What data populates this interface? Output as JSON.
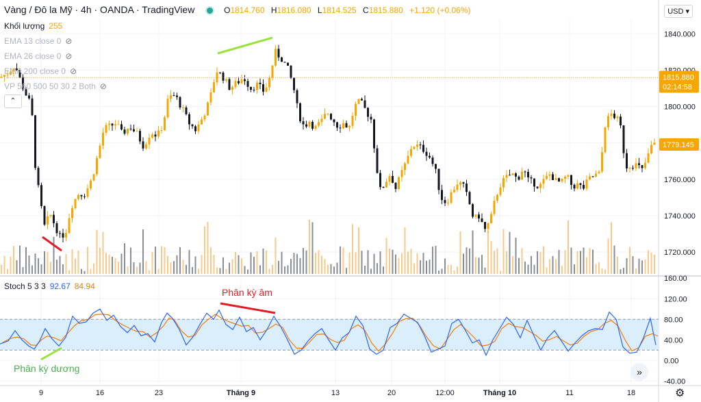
{
  "header": {
    "symbol": "Vàng / Đô la Mỹ · 4h · OANDA · TradingView",
    "ohlc": {
      "o_label": "O",
      "o": "1814.760",
      "h_label": "H",
      "h": "1816.080",
      "l_label": "L",
      "l": "1814.525",
      "c_label": "C",
      "c": "1815.880",
      "change": "+1.120 (+0.06%)"
    },
    "currency": "USD ▾"
  },
  "volume": {
    "label": "Khối lượng",
    "value": "255"
  },
  "indicators": [
    "EMA 13 close 0",
    "EMA 26 close 0",
    "EMA 200 close 0",
    "VP 560 500 50 30 2 Both"
  ],
  "stoch": {
    "label": "Stoch 5 3 3",
    "k": "92.67",
    "d": "84.94"
  },
  "annotations": {
    "negative_divergence": "Phân kỳ âm",
    "positive_divergence": "Phân kỳ dương"
  },
  "colors": {
    "up": "#f7a600",
    "down": "#131722",
    "vol_up": "#f9c98a",
    "vol_down": "#8a8d96",
    "stoch_k": "#2962ff",
    "stoch_d": "#f57c00",
    "band_fill": "#dbeefb",
    "green_line": "#9be13b",
    "red_line": "#e31b23"
  },
  "chart_data": {
    "type": "candlestick",
    "price_axis": {
      "ticks": [
        1720,
        1740,
        1760,
        1780,
        1800,
        1820,
        1840
      ],
      "ylim": [
        1708,
        1848
      ]
    },
    "volume_axis": {
      "tick": "160.00"
    },
    "stoch_axis": {
      "ticks": [
        -40,
        0,
        40,
        80,
        120
      ],
      "ylim": [
        -45,
        135
      ],
      "bands": [
        20,
        80
      ]
    },
    "last_price": {
      "value": "1815.880",
      "countdown": "02:14:58"
    },
    "second_price_label": "1779.145",
    "x_ticks": [
      "9",
      "16",
      "23",
      "Tháng 9",
      "13",
      "20",
      "12:00",
      "Tháng 10",
      "11",
      "18"
    ],
    "close_path": [
      [
        0,
        1816
      ],
      [
        10,
        1818
      ],
      [
        22,
        1823
      ],
      [
        34,
        1810
      ],
      [
        46,
        1800
      ],
      [
        52,
        1765
      ],
      [
        60,
        1745
      ],
      [
        66,
        1732
      ],
      [
        72,
        1742
      ],
      [
        80,
        1735
      ],
      [
        88,
        1728
      ],
      [
        96,
        1731
      ],
      [
        104,
        1745
      ],
      [
        114,
        1752
      ],
      [
        124,
        1752
      ],
      [
        134,
        1760
      ],
      [
        142,
        1772
      ],
      [
        152,
        1788
      ],
      [
        160,
        1789
      ],
      [
        170,
        1791
      ],
      [
        178,
        1785
      ],
      [
        190,
        1789
      ],
      [
        200,
        1785
      ],
      [
        210,
        1778
      ],
      [
        220,
        1786
      ],
      [
        230,
        1784
      ],
      [
        238,
        1790
      ],
      [
        246,
        1805
      ],
      [
        256,
        1806
      ],
      [
        266,
        1799
      ],
      [
        276,
        1791
      ],
      [
        286,
        1787
      ],
      [
        296,
        1794
      ],
      [
        306,
        1803
      ],
      [
        316,
        1820
      ],
      [
        326,
        1816
      ],
      [
        336,
        1810
      ],
      [
        346,
        1813
      ],
      [
        356,
        1816
      ],
      [
        366,
        1810
      ],
      [
        376,
        1812
      ],
      [
        386,
        1808
      ],
      [
        394,
        1816
      ],
      [
        402,
        1830
      ],
      [
        412,
        1826
      ],
      [
        420,
        1821
      ],
      [
        428,
        1812
      ],
      [
        436,
        1796
      ],
      [
        444,
        1789
      ],
      [
        452,
        1792
      ],
      [
        460,
        1788
      ],
      [
        470,
        1792
      ],
      [
        478,
        1797
      ],
      [
        486,
        1793
      ],
      [
        494,
        1789
      ],
      [
        502,
        1791
      ],
      [
        510,
        1788
      ],
      [
        518,
        1800
      ],
      [
        526,
        1803
      ],
      [
        534,
        1798
      ],
      [
        542,
        1793
      ],
      [
        550,
        1767
      ],
      [
        556,
        1753
      ],
      [
        562,
        1758
      ],
      [
        570,
        1763
      ],
      [
        578,
        1755
      ],
      [
        586,
        1763
      ],
      [
        594,
        1770
      ],
      [
        602,
        1779
      ],
      [
        612,
        1778
      ],
      [
        620,
        1776
      ],
      [
        628,
        1772
      ],
      [
        636,
        1765
      ],
      [
        644,
        1750
      ],
      [
        652,
        1747
      ],
      [
        660,
        1753
      ],
      [
        668,
        1758
      ],
      [
        676,
        1757
      ],
      [
        684,
        1749
      ],
      [
        692,
        1738
      ],
      [
        700,
        1740
      ],
      [
        708,
        1732
      ],
      [
        716,
        1737
      ],
      [
        724,
        1750
      ],
      [
        732,
        1758
      ],
      [
        740,
        1761
      ],
      [
        748,
        1763
      ],
      [
        756,
        1760
      ],
      [
        764,
        1766
      ],
      [
        772,
        1759
      ],
      [
        780,
        1758
      ],
      [
        788,
        1756
      ],
      [
        796,
        1760
      ],
      [
        804,
        1763
      ],
      [
        812,
        1759
      ],
      [
        820,
        1758
      ],
      [
        828,
        1762
      ],
      [
        836,
        1756
      ],
      [
        844,
        1757
      ],
      [
        852,
        1755
      ],
      [
        860,
        1760
      ],
      [
        868,
        1762
      ],
      [
        876,
        1763
      ],
      [
        884,
        1790
      ],
      [
        892,
        1796
      ],
      [
        900,
        1794
      ],
      [
        906,
        1790
      ],
      [
        914,
        1767
      ],
      [
        922,
        1768
      ],
      [
        930,
        1768
      ],
      [
        938,
        1765
      ],
      [
        946,
        1772
      ],
      [
        952,
        1779
      ],
      [
        958,
        1779
      ]
    ],
    "stoch_path": [
      [
        0,
        32
      ],
      [
        12,
        38
      ],
      [
        22,
        58
      ],
      [
        32,
        40
      ],
      [
        42,
        28
      ],
      [
        50,
        22
      ],
      [
        58,
        38
      ],
      [
        66,
        62
      ],
      [
        76,
        42
      ],
      [
        86,
        28
      ],
      [
        96,
        45
      ],
      [
        106,
        86
      ],
      [
        116,
        72
      ],
      [
        126,
        75
      ],
      [
        136,
        92
      ],
      [
        146,
        100
      ],
      [
        156,
        78
      ],
      [
        166,
        88
      ],
      [
        176,
        66
      ],
      [
        186,
        54
      ],
      [
        196,
        68
      ],
      [
        206,
        48
      ],
      [
        216,
        52
      ],
      [
        226,
        36
      ],
      [
        236,
        74
      ],
      [
        244,
        92
      ],
      [
        252,
        82
      ],
      [
        262,
        60
      ],
      [
        272,
        30
      ],
      [
        282,
        46
      ],
      [
        292,
        70
      ],
      [
        302,
        92
      ],
      [
        312,
        80
      ],
      [
        320,
        98
      ],
      [
        330,
        70
      ],
      [
        340,
        60
      ],
      [
        350,
        84
      ],
      [
        360,
        56
      ],
      [
        370,
        64
      ],
      [
        380,
        40
      ],
      [
        390,
        60
      ],
      [
        400,
        86
      ],
      [
        410,
        66
      ],
      [
        420,
        40
      ],
      [
        430,
        12
      ],
      [
        440,
        20
      ],
      [
        450,
        38
      ],
      [
        460,
        52
      ],
      [
        470,
        62
      ],
      [
        480,
        40
      ],
      [
        490,
        20
      ],
      [
        500,
        44
      ],
      [
        510,
        54
      ],
      [
        520,
        86
      ],
      [
        530,
        68
      ],
      [
        540,
        22
      ],
      [
        550,
        12
      ],
      [
        560,
        20
      ],
      [
        570,
        64
      ],
      [
        580,
        72
      ],
      [
        590,
        90
      ],
      [
        600,
        82
      ],
      [
        610,
        74
      ],
      [
        620,
        48
      ],
      [
        630,
        16
      ],
      [
        640,
        22
      ],
      [
        650,
        28
      ],
      [
        660,
        72
      ],
      [
        670,
        80
      ],
      [
        680,
        58
      ],
      [
        690,
        34
      ],
      [
        700,
        40
      ],
      [
        710,
        10
      ],
      [
        720,
        40
      ],
      [
        730,
        62
      ],
      [
        740,
        84
      ],
      [
        750,
        70
      ],
      [
        760,
        44
      ],
      [
        770,
        78
      ],
      [
        780,
        48
      ],
      [
        790,
        20
      ],
      [
        800,
        44
      ],
      [
        810,
        58
      ],
      [
        820,
        38
      ],
      [
        830,
        18
      ],
      [
        840,
        34
      ],
      [
        850,
        48
      ],
      [
        860,
        58
      ],
      [
        870,
        62
      ],
      [
        880,
        60
      ],
      [
        890,
        94
      ],
      [
        900,
        80
      ],
      [
        910,
        26
      ],
      [
        920,
        14
      ],
      [
        930,
        16
      ],
      [
        940,
        44
      ],
      [
        950,
        82
      ],
      [
        958,
        30
      ]
    ]
  }
}
